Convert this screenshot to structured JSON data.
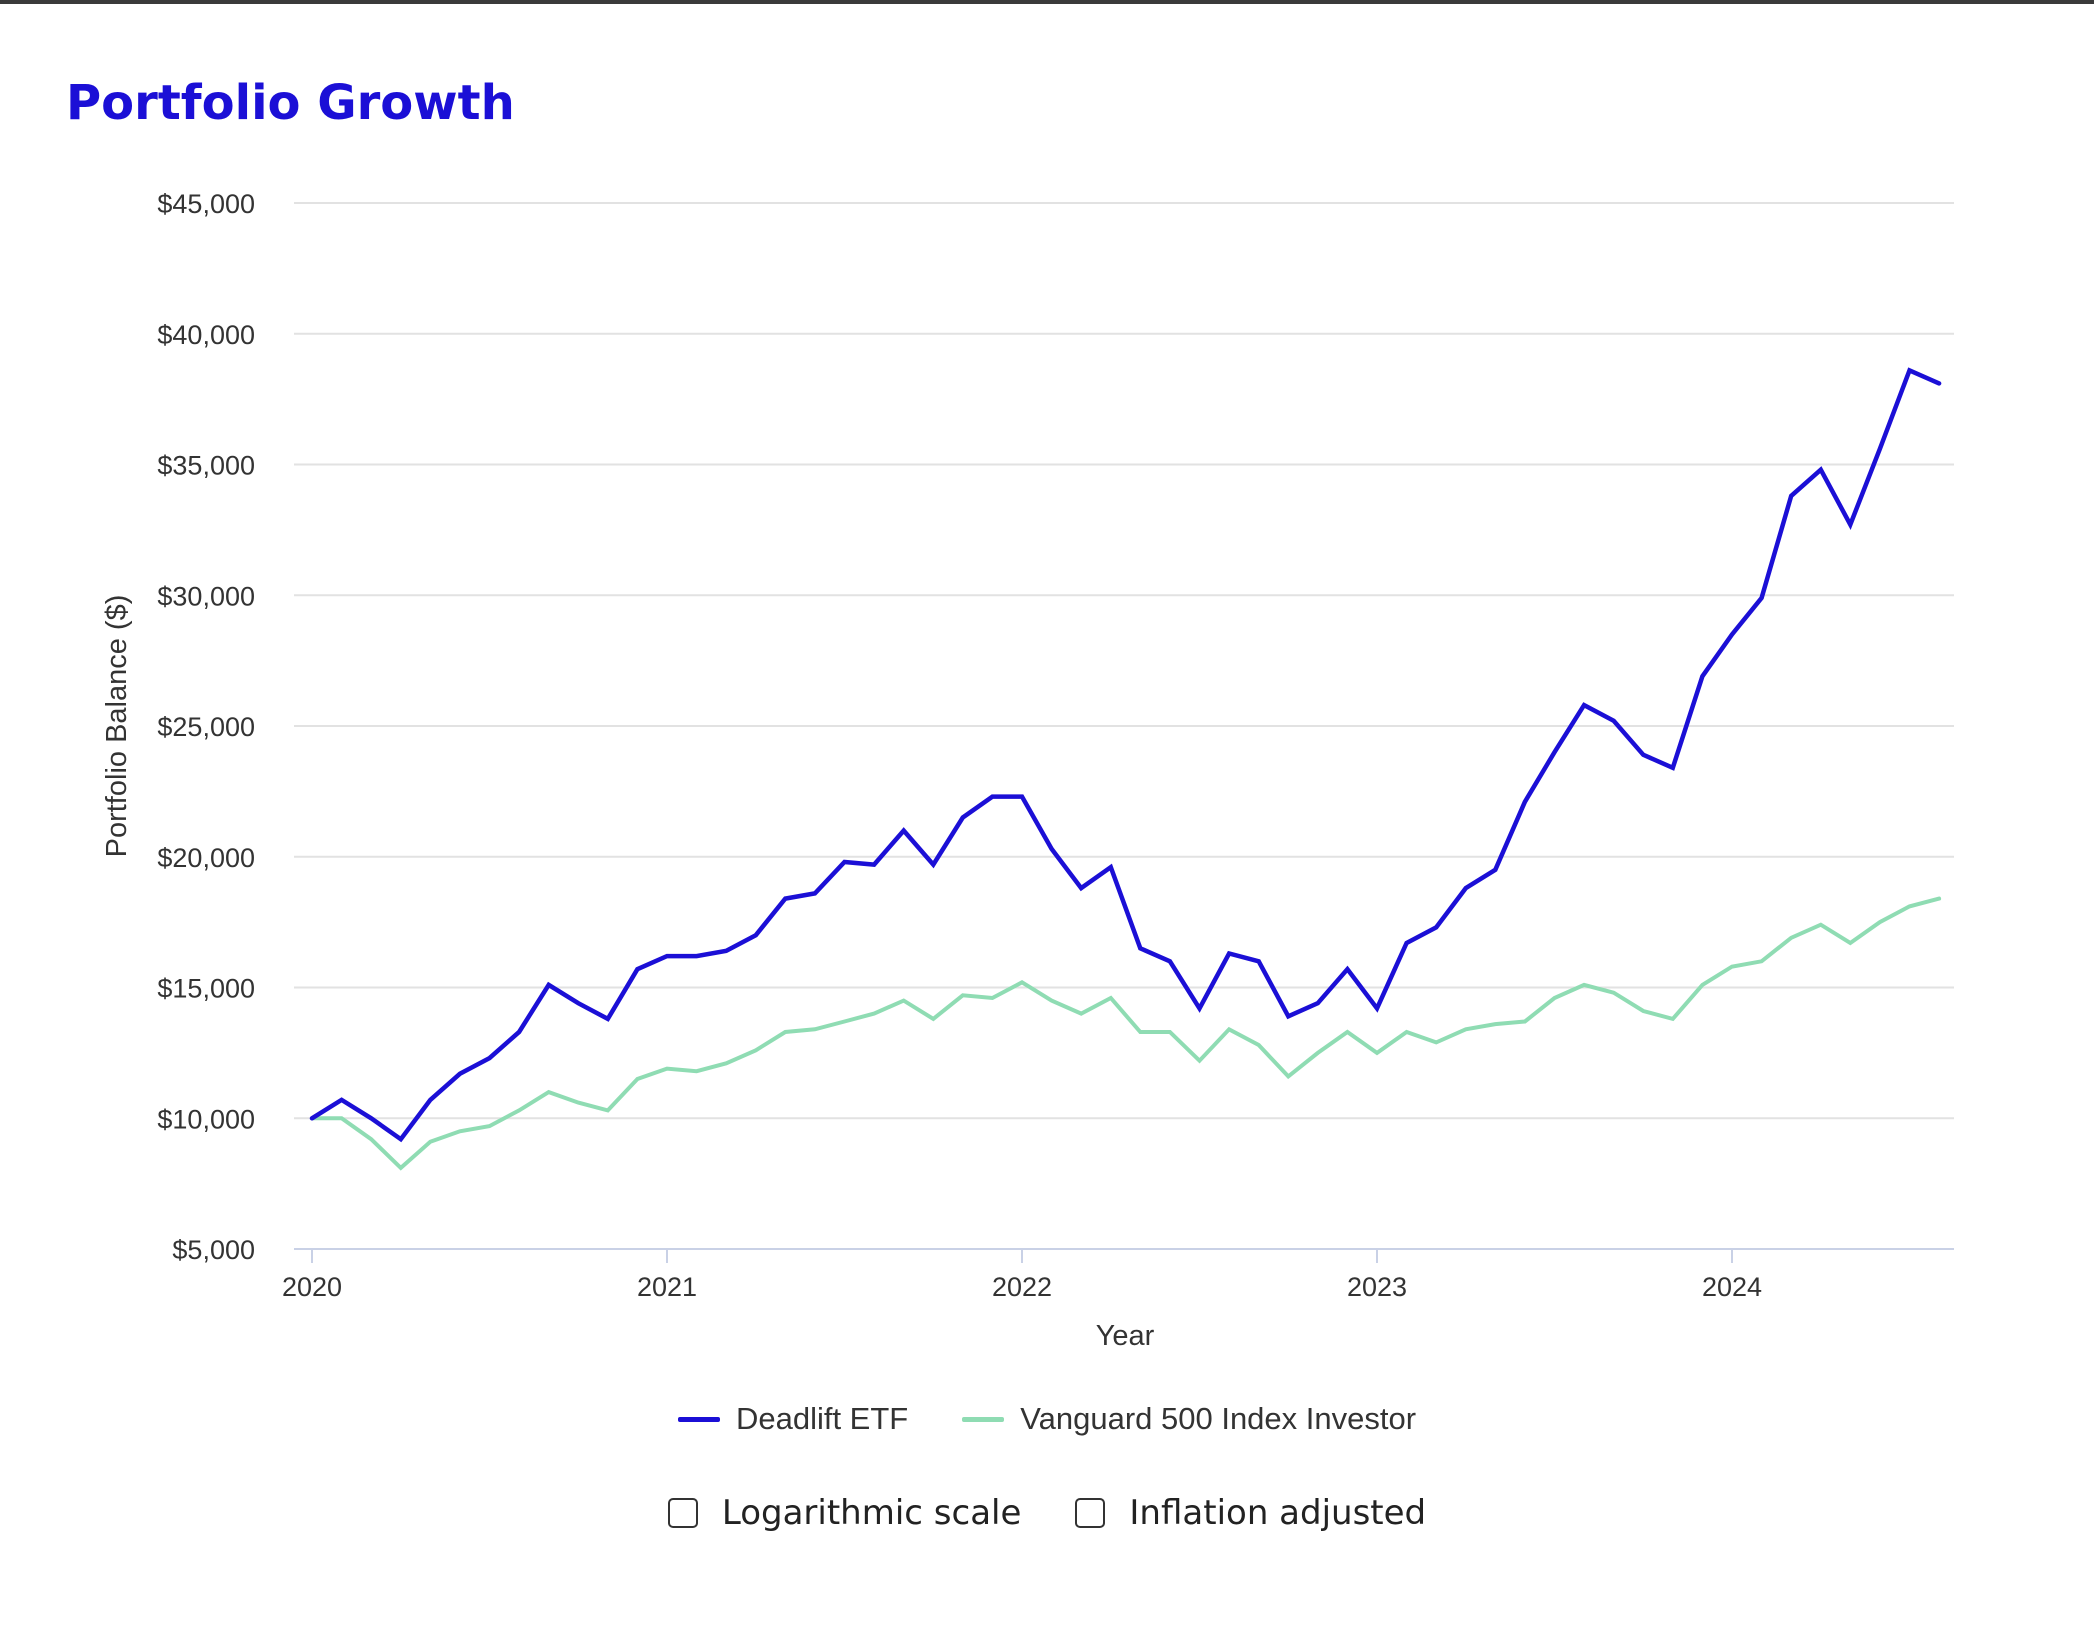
{
  "title": "Portfolio Growth",
  "colors": {
    "title": "#1b0fd6",
    "series_1": "#1b0fd6",
    "series_2": "#8fdcb3",
    "grid": "#e2e2e2",
    "axis": "#c9d1e6",
    "text": "#333333"
  },
  "options": [
    {
      "label": "Logarithmic scale",
      "checked": false
    },
    {
      "label": "Inflation adjusted",
      "checked": false
    }
  ],
  "chart_data": {
    "type": "line",
    "xlabel": "Year",
    "ylabel": "Portfolio Balance ($)",
    "ylim": [
      5000,
      45000
    ],
    "xlim": [
      2020.0,
      2024.667
    ],
    "yticks": [
      5000,
      10000,
      15000,
      20000,
      25000,
      30000,
      35000,
      40000,
      45000
    ],
    "ytick_labels": [
      "$5,000",
      "$10,000",
      "$15,000",
      "$20,000",
      "$25,000",
      "$30,000",
      "$35,000",
      "$40,000",
      "$45,000"
    ],
    "xticks": [
      2020,
      2021,
      2022,
      2023,
      2024
    ],
    "xtick_labels": [
      "2020",
      "2021",
      "2022",
      "2023",
      "2024"
    ],
    "grid": "horizontal",
    "legend_position": "bottom",
    "x_start": "2020-01",
    "x_step": "1 month",
    "series": [
      {
        "name": "Deadlift ETF",
        "values": [
          10000,
          10700,
          10000,
          9200,
          10700,
          11700,
          12300,
          13300,
          15100,
          14400,
          13800,
          15700,
          16200,
          16200,
          16400,
          17000,
          18400,
          18600,
          19800,
          19700,
          21000,
          19700,
          21500,
          22300,
          22300,
          20300,
          18800,
          19600,
          16500,
          16000,
          14200,
          16300,
          16000,
          13900,
          14400,
          15700,
          14200,
          16700,
          17300,
          18800,
          19500,
          22100,
          24000,
          25800,
          25200,
          23900,
          23400,
          26900,
          28500,
          29900,
          33800,
          34800,
          32700,
          35600,
          38600,
          38100
        ]
      },
      {
        "name": "Vanguard 500 Index Investor",
        "values": [
          10000,
          10000,
          9200,
          8100,
          9100,
          9500,
          9700,
          10300,
          11000,
          10600,
          10300,
          11500,
          11900,
          11800,
          12100,
          12600,
          13300,
          13400,
          13700,
          14000,
          14500,
          13800,
          14700,
          14600,
          15200,
          14500,
          14000,
          14600,
          13300,
          13300,
          12200,
          13400,
          12800,
          11600,
          12500,
          13300,
          12500,
          13300,
          12900,
          13400,
          13600,
          13700,
          14600,
          15100,
          14800,
          14100,
          13800,
          15100,
          15800,
          16000,
          16900,
          17400,
          16700,
          17500,
          18100,
          18400
        ]
      }
    ]
  }
}
